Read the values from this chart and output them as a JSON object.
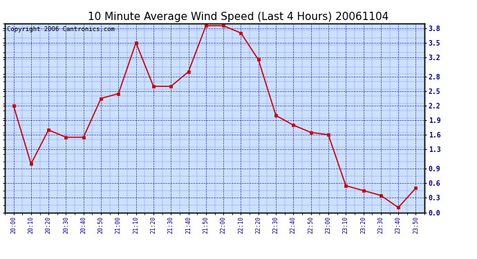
{
  "title": "10 Minute Average Wind Speed (Last 4 Hours) 20061104",
  "copyright": "Copyright 2006 Cantronics.com",
  "x_labels": [
    "20:00",
    "20:10",
    "20:20",
    "20:30",
    "20:40",
    "20:50",
    "21:00",
    "21:10",
    "21:20",
    "21:30",
    "21:40",
    "21:50",
    "22:00",
    "22:10",
    "22:20",
    "22:30",
    "22:40",
    "22:50",
    "23:00",
    "23:10",
    "23:20",
    "23:30",
    "23:40",
    "23:50"
  ],
  "y_values": [
    2.2,
    1.0,
    1.7,
    1.55,
    1.55,
    2.35,
    2.45,
    3.5,
    2.6,
    2.6,
    2.9,
    3.85,
    3.85,
    3.7,
    3.15,
    2.0,
    1.8,
    1.65,
    1.6,
    0.55,
    0.45,
    0.35,
    0.1,
    0.5
  ],
  "line_color": "#cc0000",
  "marker_color": "#cc0000",
  "bg_color": "#cce0ff",
  "outer_bg": "#ffffff",
  "grid_color": "#0000bb",
  "title_fontsize": 11,
  "copyright_fontsize": 6.5,
  "ylim": [
    0.0,
    3.9
  ],
  "yticks": [
    0.0,
    0.3,
    0.6,
    0.9,
    1.3,
    1.6,
    1.9,
    2.2,
    2.5,
    2.8,
    3.2,
    3.5,
    3.8
  ],
  "tick_label_color": "#000099",
  "border_color": "#000000"
}
